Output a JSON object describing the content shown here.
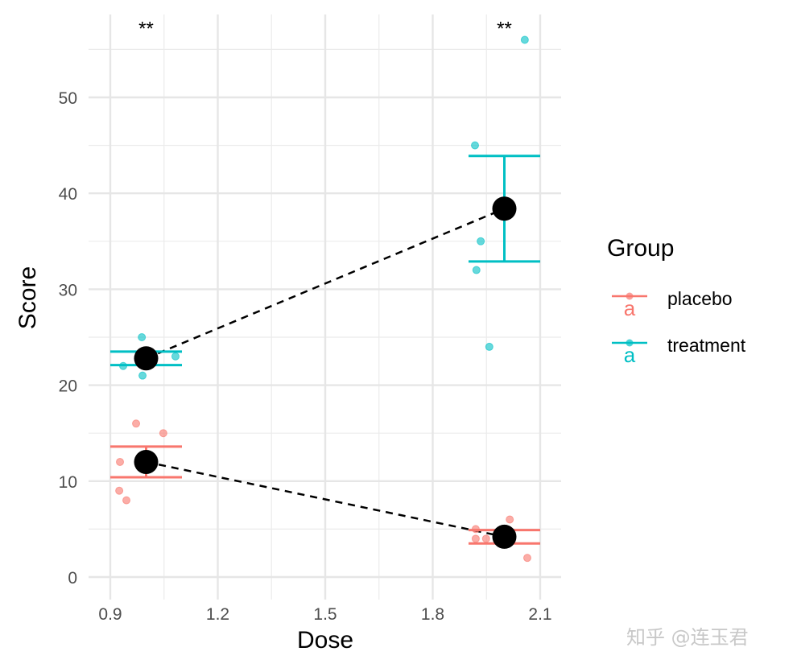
{
  "chart_data": {
    "type": "scatter",
    "xlabel": "Dose",
    "ylabel": "Score",
    "xlim": [
      0.88,
      2.14
    ],
    "ylim": [
      -2.5,
      59
    ],
    "xticks": [
      "0.9",
      "1.2",
      "1.5",
      "1.8",
      "2.1"
    ],
    "yticks": [
      "0",
      "10",
      "20",
      "30",
      "40",
      "50"
    ],
    "grid": true,
    "legend": {
      "title": "Group",
      "position": "right"
    },
    "colors": {
      "placebo": "#F8766D",
      "treatment": "#00BFC4",
      "mean": "#000000"
    },
    "series": [
      {
        "name": "placebo",
        "points": [
          {
            "x": 0.927,
            "y": 12
          },
          {
            "x": 0.972,
            "y": 16
          },
          {
            "x": 1.048,
            "y": 15
          },
          {
            "x": 0.925,
            "y": 9
          },
          {
            "x": 0.945,
            "y": 8
          },
          {
            "x": 1.92,
            "y": 5
          },
          {
            "x": 1.92,
            "y": 4
          },
          {
            "x": 1.949,
            "y": 4
          },
          {
            "x": 2.015,
            "y": 6
          },
          {
            "x": 2.064,
            "y": 2
          }
        ],
        "means": [
          {
            "x": 1.0,
            "y": 12.0
          },
          {
            "x": 2.0,
            "y": 4.2
          }
        ],
        "errorbars": [
          {
            "x": 1.0,
            "lo": 10.4,
            "hi": 13.6
          },
          {
            "x": 2.0,
            "lo": 3.5,
            "hi": 4.9
          }
        ]
      },
      {
        "name": "treatment",
        "points": [
          {
            "x": 0.988,
            "y": 25
          },
          {
            "x": 0.936,
            "y": 22
          },
          {
            "x": 1.082,
            "y": 23
          },
          {
            "x": 0.99,
            "y": 21
          },
          {
            "x": 1.0,
            "y": 23
          },
          {
            "x": 2.057,
            "y": 56
          },
          {
            "x": 1.918,
            "y": 45
          },
          {
            "x": 1.934,
            "y": 35
          },
          {
            "x": 1.922,
            "y": 32
          },
          {
            "x": 1.958,
            "y": 24
          }
        ],
        "means": [
          {
            "x": 1.0,
            "y": 22.8
          },
          {
            "x": 2.0,
            "y": 38.4
          }
        ],
        "errorbars": [
          {
            "x": 1.0,
            "lo": 22.1,
            "hi": 23.5
          },
          {
            "x": 2.0,
            "lo": 32.9,
            "hi": 43.9
          }
        ]
      }
    ],
    "annotations": [
      {
        "x": 1.0,
        "y": 57.5,
        "text": "**"
      },
      {
        "x": 2.0,
        "y": 57.5,
        "text": "**"
      }
    ]
  },
  "watermark": "知乎 @连玉君"
}
